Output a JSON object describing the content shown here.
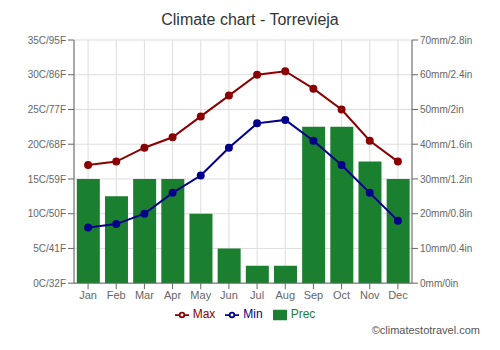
{
  "chart_data": {
    "type": "bar",
    "title": "Climate chart - Torrevieja",
    "categories": [
      "Jan",
      "Feb",
      "Mar",
      "Apr",
      "May",
      "Jun",
      "Jul",
      "Aug",
      "Sep",
      "Oct",
      "Nov",
      "Dec"
    ],
    "series": [
      {
        "name": "Prec",
        "type": "bar",
        "axis": "y2",
        "color": "#1a7f2e",
        "values": [
          30,
          25,
          30,
          30,
          20,
          10,
          5,
          5,
          45,
          45,
          35,
          30
        ]
      },
      {
        "name": "Min",
        "type": "line",
        "color": "#00008B",
        "marker": "circle",
        "line_style": "solid",
        "values": [
          8,
          8.5,
          10,
          13,
          15.5,
          19.5,
          23,
          23.5,
          20.5,
          17,
          13,
          9
        ]
      },
      {
        "name": "Max",
        "type": "line",
        "color": "#8B0000",
        "marker": "circle",
        "line_style": "solid",
        "values": [
          17,
          17.5,
          19.5,
          21,
          24,
          27,
          30,
          30.5,
          28,
          25,
          20.5,
          17.5
        ]
      }
    ],
    "ylim": [
      0,
      35
    ],
    "yticks": [
      {
        "value": 0,
        "label": "0C/32F"
      },
      {
        "value": 5,
        "label": "5C/41F"
      },
      {
        "value": 10,
        "label": "10C/50F"
      },
      {
        "value": 15,
        "label": "15C/59F"
      },
      {
        "value": 20,
        "label": "20C/68F"
      },
      {
        "value": 25,
        "label": "25C/77F"
      },
      {
        "value": 30,
        "label": "30C/86F"
      },
      {
        "value": 35,
        "label": "35C/95F"
      }
    ],
    "y2lim": [
      0,
      70
    ],
    "y2ticks": [
      {
        "value": 0,
        "label": "0mm/0in"
      },
      {
        "value": 10,
        "label": "10mm/0.4in"
      },
      {
        "value": 20,
        "label": "20mm/0.8in"
      },
      {
        "value": 30,
        "label": "30mm/1.2in"
      },
      {
        "value": 40,
        "label": "40mm/1.6in"
      },
      {
        "value": 50,
        "label": "50mm/2in"
      },
      {
        "value": 60,
        "label": "60mm/2.4in"
      },
      {
        "value": 70,
        "label": "70mm/2.8in"
      }
    ],
    "grid": true,
    "legend": "bottom",
    "annotations": [
      "©climatestotravel.com"
    ]
  }
}
